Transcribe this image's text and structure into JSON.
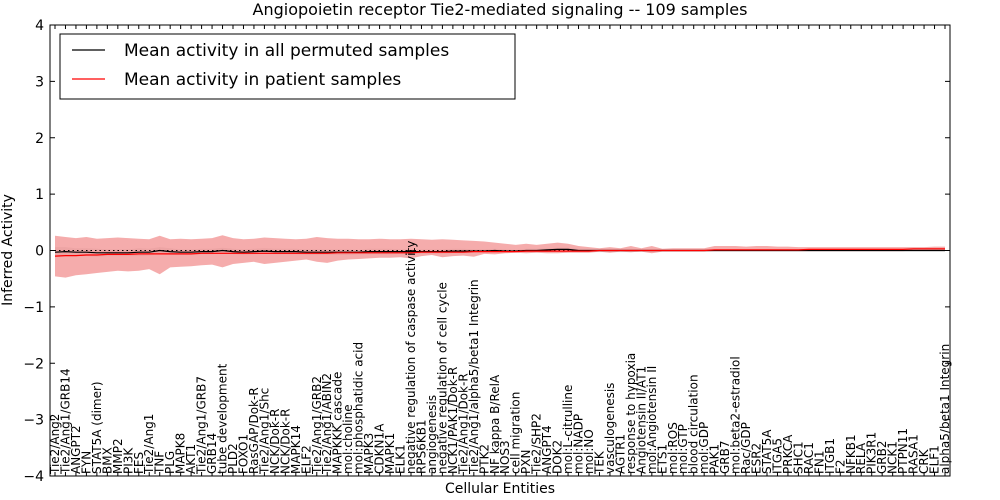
{
  "chart_data": {
    "type": "line",
    "title": "Angiopoietin receptor Tie2-mediated signaling -- 109 samples",
    "xlabel": "Cellular Entities",
    "ylabel": "Inferred Activity",
    "ylim": [
      -4,
      4
    ],
    "yticks": [
      -4,
      -3,
      -2,
      -1,
      0,
      1,
      2,
      3,
      4
    ],
    "grid": false,
    "legend_position": "top-left",
    "colors": {
      "permuted": "#000000",
      "patient": "#ff0000",
      "band": "#f08080",
      "baseline": "#000000"
    },
    "categories": [
      "Tie2/Ang2",
      "Tie2/Ang1/GRB14",
      "ANGPT2",
      "FYN",
      "STAT5A (dimer)",
      "BMX",
      "MMP2",
      "PI3K",
      "FES",
      "Tie2/Ang1",
      "TNF",
      "PLG",
      "MAPK8",
      "AKT1",
      "Tie2/Ang1/GRB7",
      "GRB14",
      "tube development",
      "PLD2",
      "FOXO1",
      "RasGAP/Dok-R",
      "Tie2/Ang1/Shc",
      "NCK/Dok-R",
      "NCK/Dok-R",
      "MAPK14",
      "ELF2",
      "Tie2/Ang1/GRB2",
      "Tie2/Ang1/ABIN2",
      "MAPKKK cascade",
      "mol:choline",
      "mol:phosphatidic acid",
      "MAPK3",
      "CDKN1A",
      "MAPK1",
      "ELK1",
      "negative regulation of caspase activity",
      "RPS6KB1",
      "angiogenesis",
      "negative regulation of cell cycle",
      "NCK1/PAK1/Dok-R",
      "Tie2/Ang1/Dok-R",
      "Tie2/Ang1/alpha5/beta1 Integrin",
      "PTK2",
      "NF kappa B/RelA",
      "NOS3",
      "cell migration",
      "PXN",
      "Tie2/SHP2",
      "ANGPT4",
      "DOK2",
      "mol:L-citrulline",
      "mol:NADP",
      "mol:NO",
      "TEK",
      "vasculogenesis",
      "AGTR1",
      "response to hypoxia",
      "Angiotensin II/AT1",
      "mol:Angiotensin II",
      "ETS1",
      "mol:ROS",
      "mol:GTP",
      "blood circulation",
      "mol:GDP",
      "PAK1",
      "GRB7",
      "mol:beta2-estradiol",
      "Rac/GDP",
      "ESR2",
      "STAT5A",
      "ITGA5",
      "PRKCA",
      "SHC1",
      "RAC1",
      "FN1",
      "ITGB1",
      "F2",
      "NFKB1",
      "RELA",
      "PIK3R1",
      "GRB2",
      "NCK1",
      "PTPN11",
      "RASA1",
      "CRK",
      "ELF1",
      "alpha5/beta1 Integrin"
    ],
    "tick_labels_shown": [
      "Tie2/Ang2",
      "Tie2/Ang1/GRB14",
      "ANGPT2",
      "FYN",
      "STAT5A (dimer)",
      "BMX",
      "MMP2",
      "PI3K",
      "FES",
      "Tie2/Ang1",
      "TNF",
      "PLG",
      "MAPK8",
      "AKT1",
      "Tie2/Ang1/GRB7",
      "GRB14",
      "tube development",
      "PLD2",
      "FOXO1",
      "RasGAP/Dok-R",
      "Tie2/Ang1/Shc",
      "NCK/Dok-R",
      "NCK/Dok-R",
      "MAPK14",
      "ELF2",
      "Tie2/Ang1/GRB2",
      "Tie2/Ang1/ABIN2",
      "MAPKKK cascade",
      "mol:choline",
      "mol:phosphatidic acid",
      "MAPK3",
      "CDKN1A",
      "MAPK1",
      "ELK1",
      "negative regulation of caspase activity",
      "RPS6KB1",
      "angiogenesis",
      "negative regulation of cell cycle",
      "NCK1/PAK1/Dok-R",
      "Tie2/Ang1/Dok-R",
      "Tie2/Ang1/alpha5/beta1 Integrin",
      "PTK2",
      "NF kappa B/RelA",
      "NOS3",
      "cell migration",
      "PXN",
      "Tie2/SHP2",
      "ANGPT4",
      "DOK2",
      "mol:L-citrulline",
      "mol:NADP",
      "mol:NO",
      "TEK",
      "vasculogenesis",
      "AGTR1",
      "response to hypoxia",
      "Angiotensin II/AT1",
      "mol:Angiotensin II",
      "ETS1",
      "mol:ROS",
      "mol:GTP",
      "blood circulation",
      "mol:GDP",
      "PAK1",
      "GRB7",
      "mol:beta2-estradiol",
      "Rac/GDP",
      "ESR2",
      "STAT5A",
      "ITGA5",
      "PRKCA",
      "SHC1",
      "RAC1",
      "FN1",
      "ITGB1",
      "F2",
      "NFKB1",
      "RELA",
      "PIK3R1",
      "GRB2",
      "NCK1",
      "PTPN11",
      "RASA1",
      "CRK",
      "ELF1",
      "alpha5/beta1 Integrin"
    ],
    "series": [
      {
        "name": "Mean activity in all permuted samples",
        "values": [
          -0.03,
          -0.02,
          -0.03,
          -0.03,
          -0.04,
          -0.04,
          -0.04,
          -0.04,
          -0.03,
          -0.03,
          0.0,
          -0.02,
          -0.03,
          -0.03,
          -0.02,
          -0.02,
          0.0,
          -0.02,
          -0.03,
          -0.02,
          -0.01,
          -0.02,
          -0.02,
          -0.02,
          -0.03,
          -0.03,
          -0.03,
          -0.03,
          -0.03,
          -0.03,
          -0.02,
          -0.02,
          -0.02,
          -0.02,
          -0.02,
          -0.02,
          -0.02,
          -0.02,
          -0.01,
          -0.01,
          -0.01,
          -0.01,
          0.0,
          -0.01,
          -0.01,
          0.0,
          0.0,
          0.01,
          0.02,
          0.02,
          0.0,
          0.0,
          0.0,
          0.0,
          0.0,
          0.0,
          0.0,
          0.0,
          0.0,
          0.0,
          0.0,
          0.0,
          0.0,
          0.0,
          0.0,
          0.0,
          0.0,
          0.0,
          0.0,
          0.0,
          0.0,
          0.0,
          0.0,
          0.0,
          0.0,
          0.0,
          0.0,
          0.0,
          0.0,
          0.0,
          0.0,
          0.0,
          0.0,
          0.0,
          0.0,
          0.0
        ],
        "lower": [
          -0.12,
          -0.1,
          -0.1,
          -0.1,
          -0.11,
          -0.1,
          -0.1,
          -0.1,
          -0.1,
          -0.09,
          -0.06,
          -0.08,
          -0.08,
          -0.08,
          -0.07,
          -0.07,
          -0.05,
          -0.07,
          -0.08,
          -0.07,
          -0.06,
          -0.07,
          -0.07,
          -0.07,
          -0.08,
          -0.08,
          -0.08,
          -0.08,
          -0.08,
          -0.07,
          -0.07,
          -0.07,
          -0.07,
          -0.06,
          -0.06,
          -0.06,
          -0.06,
          -0.06,
          -0.05,
          -0.05,
          -0.04,
          -0.04,
          -0.03,
          -0.04,
          -0.03,
          -0.03,
          -0.03,
          -0.02,
          -0.01,
          -0.01,
          -0.03,
          -0.03,
          -0.03,
          -0.03,
          -0.03,
          -0.03,
          -0.02,
          -0.02,
          -0.02,
          -0.02,
          -0.02,
          -0.02,
          -0.02,
          -0.02,
          -0.02,
          -0.02,
          -0.02,
          -0.02,
          -0.02,
          -0.02,
          -0.02,
          -0.02,
          -0.02,
          -0.02,
          -0.02,
          -0.02,
          -0.02,
          -0.02,
          -0.02,
          -0.02,
          -0.02,
          -0.02,
          -0.02,
          -0.02,
          -0.02,
          -0.02
        ],
        "upper": [
          0.06,
          0.06,
          0.04,
          0.04,
          0.03,
          0.02,
          0.02,
          0.02,
          0.04,
          0.03,
          0.06,
          0.04,
          0.02,
          0.02,
          0.03,
          0.03,
          0.05,
          0.03,
          0.02,
          0.03,
          0.04,
          0.03,
          0.03,
          0.03,
          0.02,
          0.02,
          0.02,
          0.02,
          0.02,
          0.01,
          0.03,
          0.03,
          0.03,
          0.02,
          0.02,
          0.02,
          0.02,
          0.02,
          0.03,
          0.03,
          0.02,
          0.02,
          0.03,
          0.02,
          0.01,
          0.03,
          0.03,
          0.04,
          0.05,
          0.05,
          0.03,
          0.03,
          0.03,
          0.03,
          0.03,
          0.03,
          0.02,
          0.02,
          0.02,
          0.02,
          0.02,
          0.02,
          0.02,
          0.02,
          0.02,
          0.02,
          0.02,
          0.02,
          0.02,
          0.02,
          0.02,
          0.02,
          0.02,
          0.02,
          0.02,
          0.02,
          0.02,
          0.02,
          0.02,
          0.02,
          0.02,
          0.02,
          0.02,
          0.02,
          0.02,
          0.02
        ]
      },
      {
        "name": "Mean activity in patient samples",
        "values": [
          -0.1,
          -0.09,
          -0.09,
          -0.08,
          -0.08,
          -0.07,
          -0.07,
          -0.07,
          -0.06,
          -0.06,
          -0.06,
          -0.06,
          -0.06,
          -0.06,
          -0.05,
          -0.05,
          -0.05,
          -0.05,
          -0.05,
          -0.05,
          -0.05,
          -0.05,
          -0.05,
          -0.05,
          -0.05,
          -0.05,
          -0.05,
          -0.04,
          -0.04,
          -0.04,
          -0.04,
          -0.04,
          -0.04,
          -0.04,
          -0.04,
          -0.03,
          -0.03,
          -0.03,
          -0.03,
          -0.03,
          -0.02,
          -0.02,
          -0.02,
          -0.02,
          -0.02,
          -0.01,
          -0.01,
          -0.01,
          -0.01,
          -0.01,
          -0.01,
          -0.01,
          0.0,
          0.0,
          0.0,
          0.0,
          0.0,
          0.0,
          0.0,
          0.0,
          0.0,
          0.0,
          0.0,
          0.01,
          0.01,
          0.01,
          0.01,
          0.01,
          0.01,
          0.01,
          0.01,
          0.01,
          0.02,
          0.02,
          0.02,
          0.02,
          0.02,
          0.02,
          0.02,
          0.02,
          0.02,
          0.02,
          0.03,
          0.03,
          0.03,
          0.03
        ],
        "lower": [
          -0.46,
          -0.48,
          -0.44,
          -0.42,
          -0.4,
          -0.38,
          -0.36,
          -0.37,
          -0.36,
          -0.33,
          -0.42,
          -0.3,
          -0.29,
          -0.28,
          -0.26,
          -0.25,
          -0.3,
          -0.24,
          -0.22,
          -0.2,
          -0.24,
          -0.22,
          -0.2,
          -0.18,
          -0.16,
          -0.2,
          -0.22,
          -0.18,
          -0.16,
          -0.15,
          -0.14,
          -0.13,
          -0.13,
          -0.12,
          -0.14,
          -0.1,
          -0.08,
          -0.12,
          -0.1,
          -0.09,
          -0.11,
          -0.06,
          -0.07,
          -0.05,
          -0.04,
          -0.05,
          -0.04,
          -0.05,
          -0.05,
          -0.04,
          -0.04,
          -0.04,
          -0.02,
          -0.04,
          -0.02,
          -0.03,
          -0.02,
          -0.05,
          -0.02,
          -0.02,
          -0.02,
          -0.02,
          -0.02,
          -0.01,
          -0.01,
          -0.01,
          -0.01,
          -0.01,
          -0.01,
          -0.01,
          -0.01,
          -0.01,
          -0.01,
          -0.01,
          -0.01,
          -0.01,
          -0.01,
          -0.01,
          -0.01,
          -0.01,
          -0.01,
          -0.01,
          0.0,
          0.0,
          0.0,
          0.0
        ],
        "upper": [
          0.26,
          0.24,
          0.22,
          0.24,
          0.21,
          0.22,
          0.23,
          0.22,
          0.21,
          0.2,
          0.26,
          0.2,
          0.21,
          0.2,
          0.21,
          0.22,
          0.27,
          0.22,
          0.2,
          0.21,
          0.23,
          0.22,
          0.21,
          0.2,
          0.21,
          0.24,
          0.22,
          0.21,
          0.21,
          0.2,
          0.2,
          0.21,
          0.2,
          0.2,
          0.21,
          0.2,
          0.19,
          0.2,
          0.19,
          0.18,
          0.17,
          0.16,
          0.14,
          0.12,
          0.1,
          0.12,
          0.1,
          0.12,
          0.14,
          0.12,
          0.08,
          0.06,
          0.04,
          0.06,
          0.04,
          0.08,
          0.04,
          0.08,
          0.03,
          0.04,
          0.04,
          0.04,
          0.04,
          0.08,
          0.08,
          0.08,
          0.07,
          0.08,
          0.08,
          0.07,
          0.07,
          0.06,
          0.06,
          0.06,
          0.06,
          0.06,
          0.06,
          0.06,
          0.06,
          0.06,
          0.06,
          0.06,
          0.06,
          0.06,
          0.07,
          0.07
        ]
      }
    ]
  }
}
